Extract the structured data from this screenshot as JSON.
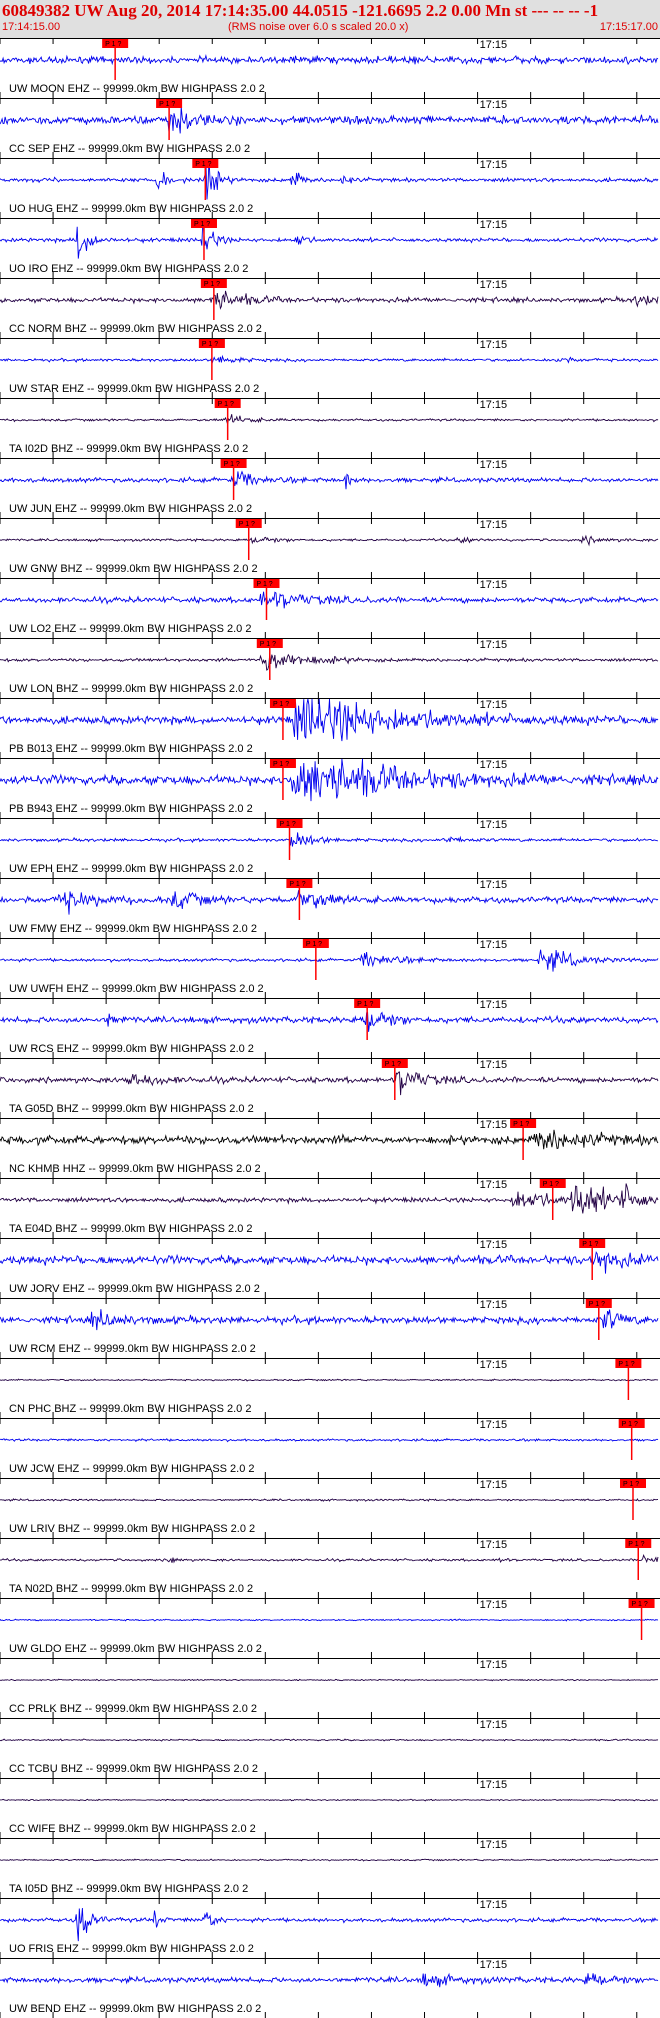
{
  "header": {
    "title": "60849382 UW Aug 20, 2014 17:14:35.00   44.0515 -121.6695  2.2 0.00 Mn st --- -- --  -1",
    "start_time": "17:14:15.00",
    "note": "(RMS noise over 6.0 s scaled 20.0 x)",
    "end_time": "17:15:17.00"
  },
  "minute_label": "17:15",
  "pick_label": "P 1 ?",
  "colors": {
    "trace_blue": "#0000ee",
    "trace_dark": "#220044",
    "trace_black": "#000000",
    "pick": "#ff0000",
    "header_text": "#dd0000",
    "header_bg": "#e0e0e0"
  },
  "traces": [
    {
      "label": "UW MOON EHZ -- 99999.0km BW  HIGHPASS  2.0  2",
      "pick": 0.175,
      "color": "blue",
      "amp": 0.45,
      "bursts": []
    },
    {
      "label": "CC SEP EHZ -- 99999.0km BW  HIGHPASS  2.0  2",
      "pick": 0.257,
      "color": "blue",
      "amp": 0.55,
      "bursts": [
        [
          0.265,
          1.4,
          0.03
        ]
      ]
    },
    {
      "label": "UO HUG EHZ -- 99999.0km BW  HIGHPASS  2.0  2",
      "pick": 0.312,
      "color": "blue",
      "amp": 0.25,
      "bursts": [
        [
          0.315,
          2.6,
          0.012
        ],
        [
          0.24,
          1.6,
          0.01
        ],
        [
          0.445,
          1.4,
          0.01
        ],
        [
          0.52,
          0.6,
          0.01
        ]
      ]
    },
    {
      "label": "UO IRO EHZ -- 99999.0km BW  HIGHPASS  2.0  2",
      "pick": 0.31,
      "color": "blue",
      "amp": 0.25,
      "bursts": [
        [
          0.12,
          2.6,
          0.015
        ],
        [
          0.31,
          2.6,
          0.012
        ],
        [
          0.45,
          1.0,
          0.01
        ]
      ]
    },
    {
      "label": "CC NORM BHZ -- 99999.0km BW  HIGHPASS  2.0  2",
      "pick": 0.325,
      "color": "dark",
      "amp": 0.3,
      "bursts": [
        [
          0.33,
          1.0,
          0.04
        ],
        [
          0.97,
          0.6,
          0.02
        ]
      ]
    },
    {
      "label": "UW STAR EHZ -- 99999.0km BW  HIGHPASS  2.0  2",
      "pick": 0.322,
      "color": "blue",
      "amp": 0.18,
      "bursts": [
        [
          0.33,
          0.5,
          0.03
        ],
        [
          0.85,
          0.3,
          0.02
        ]
      ]
    },
    {
      "label": "TA I02D BHZ -- 99999.0km BW  HIGHPASS  2.0  2",
      "pick": 0.346,
      "color": "dark",
      "amp": 0.15,
      "bursts": [
        [
          0.35,
          0.5,
          0.03
        ]
      ]
    },
    {
      "label": "UW JUN EHZ -- 99999.0km BW  HIGHPASS  2.0  2",
      "pick": 0.355,
      "color": "blue",
      "amp": 0.3,
      "bursts": [
        [
          0.36,
          0.9,
          0.03
        ],
        [
          0.525,
          1.2,
          0.006
        ]
      ]
    },
    {
      "label": "UW GNW BHZ -- 99999.0km BW  HIGHPASS  2.0  2",
      "pick": 0.378,
      "color": "dark",
      "amp": 0.15,
      "bursts": [
        [
          0.39,
          0.4,
          0.03
        ],
        [
          0.7,
          0.3,
          0.02
        ],
        [
          0.89,
          0.35,
          0.03
        ]
      ]
    },
    {
      "label": "UW LO2 EHZ -- 99999.0km BW  HIGHPASS  2.0  2",
      "pick": 0.405,
      "color": "blue",
      "amp": 0.35,
      "bursts": [
        [
          0.41,
          1.0,
          0.05
        ]
      ]
    },
    {
      "label": "UW LON BHZ -- 99999.0km BW  HIGHPASS  2.0  2",
      "pick": 0.41,
      "color": "dark",
      "amp": 0.2,
      "bursts": [
        [
          0.41,
          1.4,
          0.05
        ]
      ]
    },
    {
      "label": "PB B013 EHZ -- 99999.0km BW  HIGHPASS  2.0  2",
      "pick": 0.43,
      "color": "blue",
      "amp": 0.5,
      "bursts": [
        [
          0.48,
          2.6,
          0.12
        ]
      ]
    },
    {
      "label": "PB B943 EHZ -- 99999.0km BW  HIGHPASS  2.0  2",
      "pick": 0.43,
      "color": "blue",
      "amp": 0.6,
      "bursts": [
        [
          0.48,
          2.6,
          0.12
        ]
      ]
    },
    {
      "label": "UW EPH EHZ -- 99999.0km BW  HIGHPASS  2.0  2",
      "pick": 0.44,
      "color": "blue",
      "amp": 0.2,
      "bursts": [
        [
          0.45,
          0.8,
          0.03
        ],
        [
          0.68,
          0.3,
          0.03
        ]
      ]
    },
    {
      "label": "UW FMW EHZ -- 99999.0km BW  HIGHPASS  2.0  2",
      "pick": 0.455,
      "color": "blue",
      "amp": 0.4,
      "bursts": [
        [
          0.46,
          1.3,
          0.03
        ],
        [
          0.1,
          1.0,
          0.04
        ],
        [
          0.27,
          0.9,
          0.03
        ]
      ]
    },
    {
      "label": "UW UWFH EHZ -- 99999.0km BW  HIGHPASS  2.0  2",
      "pick": 0.48,
      "color": "blue",
      "amp": 0.2,
      "bursts": [
        [
          0.56,
          0.8,
          0.04
        ],
        [
          0.83,
          1.3,
          0.04
        ]
      ]
    },
    {
      "label": "UW RCS EHZ -- 99999.0km BW  HIGHPASS  2.0  2",
      "pick": 0.558,
      "color": "blue",
      "amp": 0.4,
      "bursts": [
        [
          0.56,
          1.4,
          0.03
        ],
        [
          0.165,
          1.0,
          0.01
        ]
      ]
    },
    {
      "label": "TA G05D BHZ -- 99999.0km BW  HIGHPASS  2.0  2",
      "pick": 0.6,
      "color": "dark",
      "amp": 0.35,
      "bursts": [
        [
          0.61,
          1.4,
          0.03
        ],
        [
          0.2,
          0.7,
          0.04
        ]
      ]
    },
    {
      "label": "NC KHMB HHZ -- 99999.0km BW  HIGHPASS  2.0  2",
      "pick": 0.795,
      "color": "black",
      "amp": 0.55,
      "bursts": [
        [
          0.83,
          1.0,
          0.06
        ]
      ]
    },
    {
      "label": "TA E04D BHZ -- 99999.0km BW  HIGHPASS  2.0  2",
      "pick": 0.84,
      "color": "dark",
      "amp": 0.3,
      "bursts": [
        [
          0.79,
          1.2,
          0.04
        ],
        [
          0.88,
          2.2,
          0.04
        ],
        [
          0.95,
          1.0,
          0.03
        ]
      ]
    },
    {
      "label": "UW JORV EHZ -- 99999.0km BW  HIGHPASS  2.0  2",
      "pick": 0.9,
      "color": "blue",
      "amp": 0.55,
      "bursts": [
        [
          0.91,
          1.2,
          0.03
        ]
      ]
    },
    {
      "label": "UW RCM EHZ -- 99999.0km BW  HIGHPASS  2.0  2",
      "pick": 0.91,
      "color": "blue",
      "amp": 0.45,
      "bursts": [
        [
          0.92,
          1.4,
          0.02
        ],
        [
          0.15,
          0.7,
          0.04
        ]
      ]
    },
    {
      "label": "CN PHC BHZ -- 99999.0km BW  HIGHPASS  2.0  2",
      "pick": 0.955,
      "color": "dark",
      "amp": 0.1,
      "bursts": []
    },
    {
      "label": "UW JCW EHZ -- 99999.0km BW  HIGHPASS  2.0  2",
      "pick": 0.96,
      "color": "blue",
      "amp": 0.15,
      "bursts": []
    },
    {
      "label": "UW LRIV BHZ -- 99999.0km BW  HIGHPASS  2.0  2",
      "pick": 0.962,
      "color": "dark",
      "amp": 0.12,
      "bursts": []
    },
    {
      "label": "TA N02D BHZ -- 99999.0km BW  HIGHPASS  2.0  2",
      "pick": 0.97,
      "color": "dark",
      "amp": 0.15,
      "bursts": [
        [
          0.258,
          1.1,
          0.006
        ],
        [
          0.76,
          0.6,
          0.006
        ],
        [
          0.98,
          1.0,
          0.015
        ]
      ]
    },
    {
      "label": "UW GLDO EHZ -- 99999.0km BW  HIGHPASS  2.0  2",
      "pick": 0.975,
      "color": "blue",
      "amp": 0.1,
      "bursts": []
    },
    {
      "label": "CC PRLK BHZ -- 99999.0km BW  HIGHPASS  2.0  2",
      "pick": null,
      "color": "dark",
      "amp": 0.08,
      "bursts": []
    },
    {
      "label": "CC TCBU BHZ -- 99999.0km BW  HIGHPASS  2.0  2",
      "pick": null,
      "color": "dark",
      "amp": 0.1,
      "bursts": []
    },
    {
      "label": "CC WIFE BHZ -- 99999.0km BW  HIGHPASS  2.0  2",
      "pick": null,
      "color": "dark",
      "amp": 0.08,
      "bursts": []
    },
    {
      "label": "TA I05D BHZ -- 99999.0km BW  HIGHPASS  2.0  2",
      "pick": null,
      "color": "dark",
      "amp": 0.1,
      "bursts": []
    },
    {
      "label": "UO FRIS EHZ -- 99999.0km BW  HIGHPASS  2.0  2",
      "pick": null,
      "color": "blue",
      "amp": 0.25,
      "bursts": [
        [
          0.12,
          2.6,
          0.015
        ],
        [
          0.235,
          1.6,
          0.006
        ],
        [
          0.31,
          2.0,
          0.01
        ]
      ]
    },
    {
      "label": "UW BEND EHZ -- 99999.0km BW  HIGHPASS  2.0  2",
      "pick": null,
      "color": "blue",
      "amp": 0.35,
      "bursts": [
        [
          0.65,
          0.6,
          0.04
        ],
        [
          0.9,
          0.6,
          0.04
        ]
      ]
    }
  ]
}
